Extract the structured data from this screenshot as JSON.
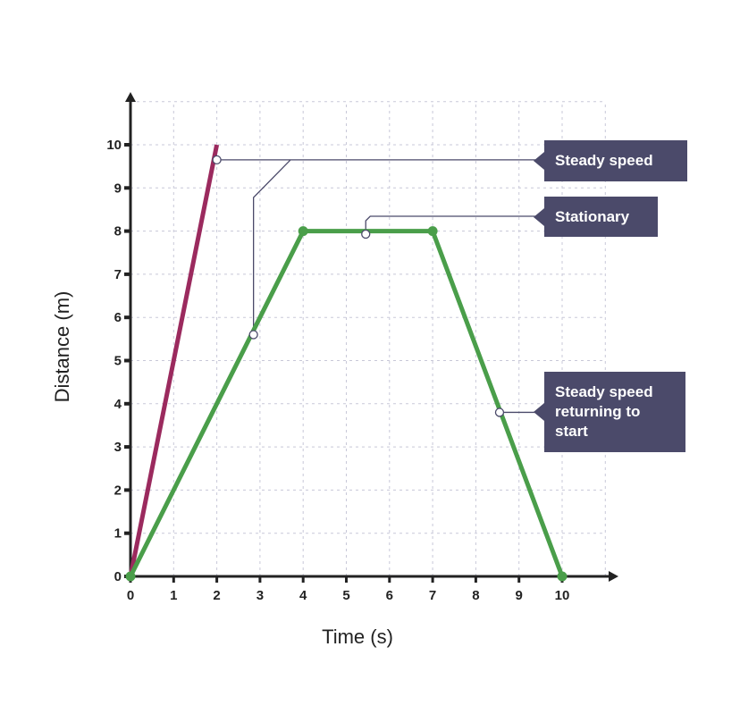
{
  "chart_data": {
    "type": "line",
    "xlabel": "Time (s)",
    "ylabel": "Distance (m)",
    "xlim": [
      0,
      10
    ],
    "ylim": [
      0,
      10
    ],
    "xticks": [
      0,
      1,
      2,
      3,
      4,
      5,
      6,
      7,
      8,
      9,
      10
    ],
    "yticks": [
      0,
      1,
      2,
      3,
      4,
      5,
      6,
      7,
      8,
      9,
      10
    ],
    "grid": true,
    "series": [
      {
        "color": "#9b2a5e",
        "x": [
          0,
          2
        ],
        "y": [
          0,
          10
        ]
      },
      {
        "color": "#4a9e4a",
        "x": [
          0,
          4,
          7,
          10
        ],
        "y": [
          0,
          8,
          8,
          0
        ]
      }
    ],
    "annotations": [
      {
        "text": "Steady speed",
        "points": [
          [
            2,
            9.65
          ],
          [
            2.85,
            5.6
          ]
        ]
      },
      {
        "text": "Stationary",
        "points": [
          [
            5.45,
            7.93
          ]
        ]
      },
      {
        "text": "Steady speed returning to start",
        "points": [
          [
            8.55,
            3.8
          ]
        ]
      }
    ],
    "annotation_color": "#4b4a6a"
  }
}
